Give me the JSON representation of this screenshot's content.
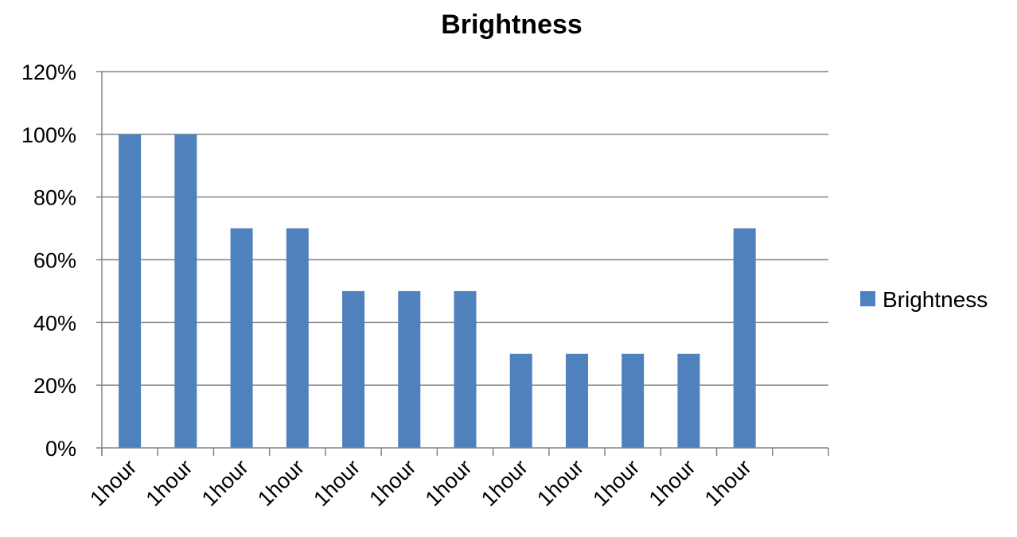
{
  "chart_data": {
    "type": "bar",
    "title": "Brightness",
    "xlabel": "",
    "ylabel": "",
    "categories": [
      "1hour",
      "1hour",
      "1hour",
      "1hour",
      "1hour",
      "1hour",
      "1hour",
      "1hour",
      "1hour",
      "1hour",
      "1hour",
      "1hour",
      ""
    ],
    "series": [
      {
        "name": "Brightness",
        "values": [
          100,
          100,
          70,
          70,
          50,
          50,
          50,
          30,
          30,
          30,
          30,
          70,
          null
        ],
        "color": "#4F81BD"
      }
    ],
    "ylim": [
      0,
      120
    ],
    "yticks": [
      "0%",
      "20%",
      "40%",
      "60%",
      "80%",
      "100%",
      "120%"
    ],
    "ytick_values": [
      0,
      20,
      40,
      60,
      80,
      100,
      120
    ],
    "grid": true,
    "legend": "right",
    "colors": {
      "bar": "#4F81BD",
      "grid": "#868686",
      "axis": "#868686"
    }
  }
}
